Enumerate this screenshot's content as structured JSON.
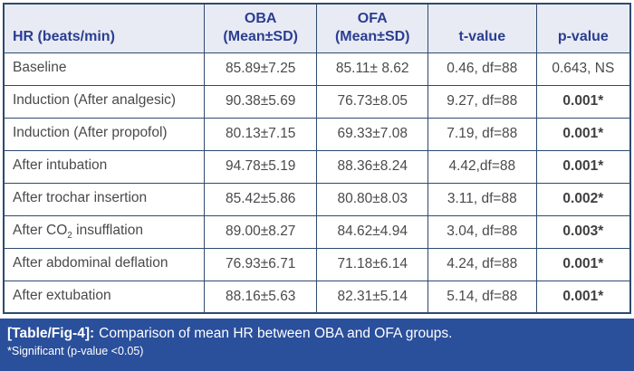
{
  "table": {
    "header": {
      "hr": "HR (beats/min)",
      "oba_line1": "OBA",
      "oba_line2": "(Mean±SD)",
      "ofa_line1": "OFA",
      "ofa_line2": "(Mean±SD)",
      "t": "t-value",
      "p": "p-value"
    },
    "rows": [
      {
        "label": "Baseline",
        "oba": "85.89±7.25",
        "ofa": "85.11± 8.62",
        "t": "0.46, df=88",
        "p": "0.643, NS",
        "significant": false
      },
      {
        "label": "Induction (After analgesic)",
        "oba": "90.38±5.69",
        "ofa": "76.73±8.05",
        "t": "9.27, df=88",
        "p": "0.001*",
        "significant": true
      },
      {
        "label": "Induction (After propofol)",
        "oba": "80.13±7.15",
        "ofa": "69.33±7.08",
        "t": "7.19, df=88",
        "p": "0.001*",
        "significant": true
      },
      {
        "label": "After intubation",
        "oba": "94.78±5.19",
        "ofa": "88.36±8.24",
        "t": "4.42,df=88",
        "p": "0.001*",
        "significant": true
      },
      {
        "label": "After trochar insertion",
        "oba": "85.42±5.86",
        "ofa": "80.80±8.03",
        "t": "3.11, df=88",
        "p": "0.002*",
        "significant": true
      },
      {
        "label": "After CO",
        "label_sub": "2",
        "label_post": " insufflation",
        "oba": "89.00±8.27",
        "ofa": "84.62±4.94",
        "t": "3.04, df=88",
        "p": "0.003*",
        "significant": true
      },
      {
        "label": "After abdominal deflation",
        "oba": "76.93±6.71",
        "ofa": "71.18±6.14",
        "t": "4.24, df=88",
        "p": "0.001*",
        "significant": true
      },
      {
        "label": "After extubation",
        "oba": "88.16±5.63",
        "ofa": "82.31±5.14",
        "t": "5.14, df=88",
        "p": "0.001*",
        "significant": true
      }
    ]
  },
  "footer": {
    "tag": "[Table/Fig-4]:",
    "caption": "Comparison of mean HR between OBA and OFA groups.",
    "note": "*Significant (p-value <0.05)"
  },
  "colors": {
    "header_bg": "#E8EBF4",
    "header_text": "#2B3E91",
    "border": "#2E4A6E",
    "caption_bar_bg": "#2A4F9B",
    "caption_text": "#FFFFFF",
    "body_text": "#4A4A4A"
  }
}
